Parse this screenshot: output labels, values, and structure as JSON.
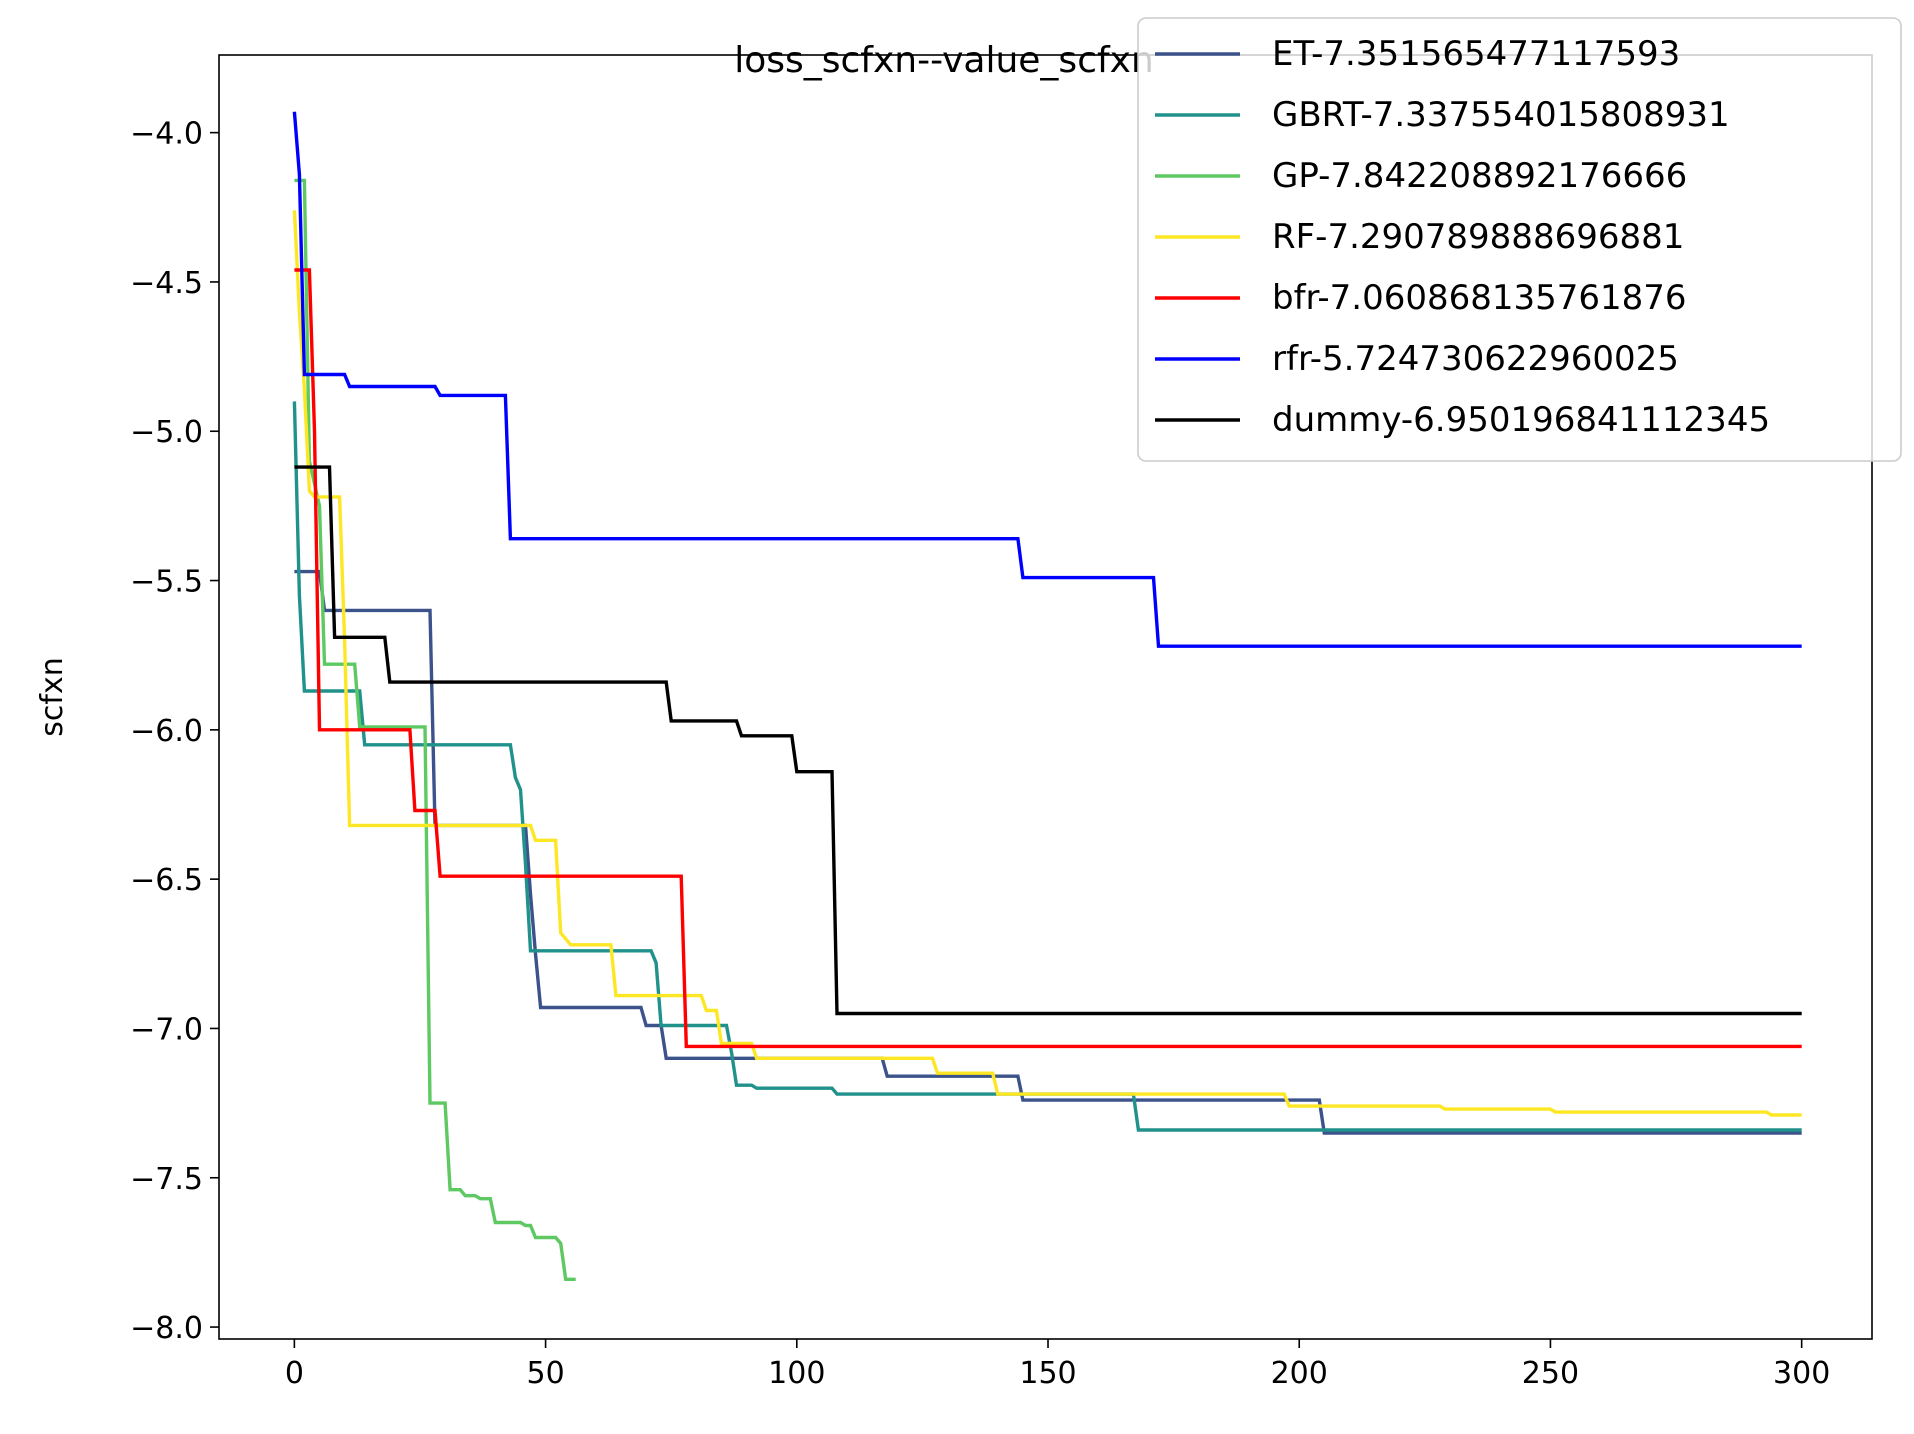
{
  "chart_data": {
    "type": "line",
    "title": "loss_scfxn--value_scfxn",
    "xlabel": "",
    "ylabel": "scfxn",
    "xlim": [
      -15,
      314
    ],
    "ylim": [
      -8.04,
      -3.74
    ],
    "x_ticks": [
      0,
      50,
      100,
      150,
      200,
      250,
      300
    ],
    "y_ticks": [
      -4.0,
      -4.5,
      -5.0,
      -5.5,
      -6.0,
      -6.5,
      -7.0,
      -7.5,
      -8.0
    ],
    "grid": false,
    "legend_position": "top-right",
    "series": [
      {
        "name": "ET-7.351565477117593",
        "color": "#3b528b",
        "steps": [
          [
            0,
            -5.47
          ],
          [
            5,
            -5.47
          ],
          [
            6,
            -5.6
          ],
          [
            27,
            -5.6
          ],
          [
            28,
            -6.32
          ],
          [
            46,
            -6.32
          ],
          [
            47,
            -6.55
          ],
          [
            48,
            -6.75
          ],
          [
            49,
            -6.93
          ],
          [
            69,
            -6.93
          ],
          [
            70,
            -6.99
          ],
          [
            73,
            -6.99
          ],
          [
            74,
            -7.1
          ],
          [
            117,
            -7.1
          ],
          [
            118,
            -7.16
          ],
          [
            144,
            -7.16
          ],
          [
            145,
            -7.24
          ],
          [
            204,
            -7.24
          ],
          [
            205,
            -7.35
          ],
          [
            300,
            -7.35
          ]
        ]
      },
      {
        "name": "GBRT-7.337554015808931",
        "color": "#21918c",
        "steps": [
          [
            0,
            -4.9
          ],
          [
            1,
            -5.55
          ],
          [
            2,
            -5.87
          ],
          [
            13,
            -5.87
          ],
          [
            14,
            -6.05
          ],
          [
            43,
            -6.05
          ],
          [
            44,
            -6.16
          ],
          [
            45,
            -6.2
          ],
          [
            46,
            -6.45
          ],
          [
            47,
            -6.74
          ],
          [
            71,
            -6.74
          ],
          [
            72,
            -6.78
          ],
          [
            73,
            -6.99
          ],
          [
            86,
            -6.99
          ],
          [
            87,
            -7.08
          ],
          [
            88,
            -7.19
          ],
          [
            91,
            -7.19
          ],
          [
            92,
            -7.2
          ],
          [
            107,
            -7.2
          ],
          [
            108,
            -7.22
          ],
          [
            167,
            -7.22
          ],
          [
            168,
            -7.34
          ],
          [
            300,
            -7.34
          ]
        ]
      },
      {
        "name": "GP-7.842208892176666",
        "color": "#5ec962",
        "steps": [
          [
            0,
            -4.16
          ],
          [
            2,
            -4.16
          ],
          [
            3,
            -5.1
          ],
          [
            5,
            -5.25
          ],
          [
            6,
            -5.78
          ],
          [
            12,
            -5.78
          ],
          [
            13,
            -5.99
          ],
          [
            26,
            -5.99
          ],
          [
            27,
            -7.25
          ],
          [
            30,
            -7.25
          ],
          [
            31,
            -7.54
          ],
          [
            33,
            -7.54
          ],
          [
            34,
            -7.56
          ],
          [
            36,
            -7.56
          ],
          [
            37,
            -7.57
          ],
          [
            39,
            -7.57
          ],
          [
            40,
            -7.65
          ],
          [
            45,
            -7.65
          ],
          [
            46,
            -7.66
          ],
          [
            47,
            -7.66
          ],
          [
            48,
            -7.7
          ],
          [
            52,
            -7.7
          ],
          [
            53,
            -7.72
          ],
          [
            54,
            -7.84
          ],
          [
            56,
            -7.84
          ]
        ]
      },
      {
        "name": "RF-7.290789888696881",
        "color": "#fde725",
        "steps": [
          [
            0,
            -4.26
          ],
          [
            1,
            -4.6
          ],
          [
            2,
            -4.86
          ],
          [
            3,
            -5.2
          ],
          [
            4,
            -5.22
          ],
          [
            9,
            -5.22
          ],
          [
            10,
            -5.7
          ],
          [
            11,
            -6.32
          ],
          [
            47,
            -6.32
          ],
          [
            48,
            -6.37
          ],
          [
            52,
            -6.37
          ],
          [
            53,
            -6.68
          ],
          [
            55,
            -6.72
          ],
          [
            63,
            -6.72
          ],
          [
            64,
            -6.89
          ],
          [
            81,
            -6.89
          ],
          [
            82,
            -6.94
          ],
          [
            84,
            -6.94
          ],
          [
            85,
            -7.05
          ],
          [
            91,
            -7.05
          ],
          [
            92,
            -7.1
          ],
          [
            127,
            -7.1
          ],
          [
            128,
            -7.15
          ],
          [
            139,
            -7.15
          ],
          [
            140,
            -7.22
          ],
          [
            197,
            -7.22
          ],
          [
            198,
            -7.26
          ],
          [
            228,
            -7.26
          ],
          [
            229,
            -7.27
          ],
          [
            250,
            -7.27
          ],
          [
            251,
            -7.28
          ],
          [
            293,
            -7.28
          ],
          [
            294,
            -7.29
          ],
          [
            300,
            -7.29
          ]
        ]
      },
      {
        "name": "bfr-7.060868135761876",
        "color": "#ff0000",
        "steps": [
          [
            0,
            -4.46
          ],
          [
            3,
            -4.46
          ],
          [
            4,
            -5.0
          ],
          [
            5,
            -6.0
          ],
          [
            23,
            -6.0
          ],
          [
            24,
            -6.27
          ],
          [
            28,
            -6.27
          ],
          [
            29,
            -6.49
          ],
          [
            77,
            -6.49
          ],
          [
            78,
            -7.06
          ],
          [
            300,
            -7.06
          ]
        ]
      },
      {
        "name": "rfr-5.724730622960025",
        "color": "#0000ff",
        "steps": [
          [
            0,
            -3.93
          ],
          [
            1,
            -4.14
          ],
          [
            2,
            -4.81
          ],
          [
            10,
            -4.81
          ],
          [
            11,
            -4.85
          ],
          [
            28,
            -4.85
          ],
          [
            29,
            -4.88
          ],
          [
            42,
            -4.88
          ],
          [
            43,
            -5.36
          ],
          [
            144,
            -5.36
          ],
          [
            145,
            -5.49
          ],
          [
            171,
            -5.49
          ],
          [
            172,
            -5.72
          ],
          [
            300,
            -5.72
          ]
        ]
      },
      {
        "name": "dummy-6.950196841112345",
        "color": "#000000",
        "steps": [
          [
            0,
            -5.12
          ],
          [
            7,
            -5.12
          ],
          [
            8,
            -5.69
          ],
          [
            18,
            -5.69
          ],
          [
            19,
            -5.84
          ],
          [
            74,
            -5.84
          ],
          [
            75,
            -5.97
          ],
          [
            88,
            -5.97
          ],
          [
            89,
            -6.02
          ],
          [
            99,
            -6.02
          ],
          [
            100,
            -6.14
          ],
          [
            107,
            -6.14
          ],
          [
            108,
            -6.95
          ],
          [
            300,
            -6.95
          ]
        ]
      }
    ]
  }
}
